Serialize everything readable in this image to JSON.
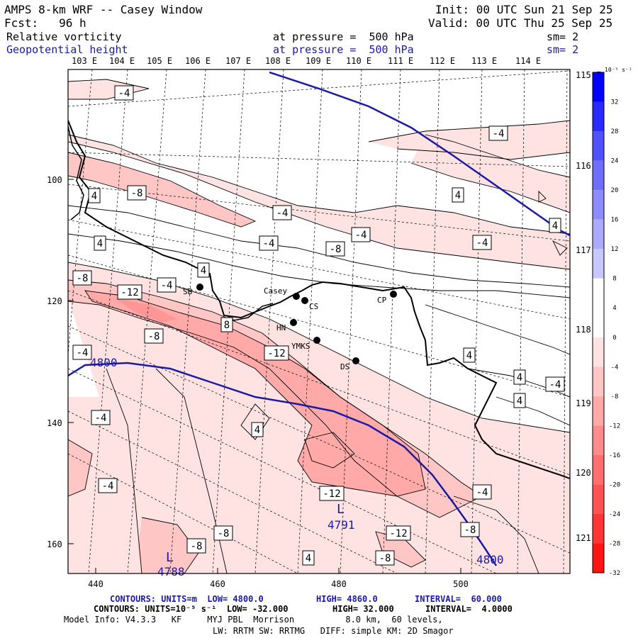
{
  "header": {
    "title": "AMPS 8-km WRF -- Casey Window",
    "forecast": "Fcst:   96 h",
    "init": "Init: 00 UTC Sun 21 Sep 25",
    "valid": "Valid: 00 UTC Thu 25 Sep 25"
  },
  "fields": [
    {
      "name": "Relative vorticity",
      "pressure": "at pressure =  500 hPa",
      "smooth": "sm= 2",
      "color": "#000000"
    },
    {
      "name": "Geopotential height",
      "pressure": "at pressure =  500 hPa",
      "smooth": "sm= 2",
      "color": "#1a1aa6"
    }
  ],
  "lon_labels": [
    "103 E",
    "104 E",
    "105 E",
    "106 E",
    "107 E",
    "108 E",
    "109 E",
    "110 E",
    "111 E",
    "112 E",
    "113 E",
    "114 E"
  ],
  "lat_labels": [
    "115 E",
    "116 E",
    "117 E",
    "118 E",
    "119 E",
    "120 E",
    "121 E"
  ],
  "x_ticks": [
    "440",
    "460",
    "480",
    "500"
  ],
  "y_ticks": [
    "100",
    "120",
    "140",
    "160"
  ],
  "stations": [
    {
      "id": "SB",
      "label": "SB"
    },
    {
      "id": "Casey",
      "label": "Casey"
    },
    {
      "id": "CS",
      "label": "CS"
    },
    {
      "id": "HN",
      "label": "HN"
    },
    {
      "id": "YMKS",
      "label": "YMKS"
    },
    {
      "id": "DS",
      "label": "DS"
    },
    {
      "id": "CP",
      "label": "CP"
    }
  ],
  "contour_labels": {
    "vort": [
      "-4",
      "-4",
      "-4",
      "-8",
      "4",
      "-4",
      "-4",
      "4",
      "4",
      "-8",
      "-4",
      "-4",
      "4",
      "4",
      "-8",
      "-12",
      "-4",
      "8",
      "-8",
      "-12",
      "-4",
      "4",
      "4",
      "-4",
      "4",
      "-4",
      "-4",
      "-12",
      "4",
      "-12",
      "-4",
      "-8",
      "-8",
      "4",
      "-8",
      "-8"
    ],
    "height": [
      "4800",
      "4800",
      "4791",
      "4788"
    ],
    "lows": [
      "L",
      "L"
    ]
  },
  "colorbar": {
    "unit": "10⁻⁵ s⁻¹",
    "labels": [
      "32",
      "28",
      "24",
      "20",
      "16",
      "12",
      "8",
      "4",
      "0",
      "-4",
      "-8",
      "-12",
      "-16",
      "-20",
      "-24",
      "-28",
      "-32"
    ],
    "colors": [
      "#0000ff",
      "#2a2aff",
      "#5050ff",
      "#6e6eff",
      "#8c8cff",
      "#aaaaff",
      "#c8c8ff",
      "#ffffff",
      "#ffffff",
      "#ffe3e3",
      "#ffc6c6",
      "#ffa9a9",
      "#ff8c8c",
      "#ff6f6f",
      "#ff5252",
      "#ff3535",
      "#ff1414"
    ]
  },
  "footer": {
    "line1_contours": "CONTOURS: UNITS=m  LOW= 4800.0",
    "line1_high": "HIGH= 4860.0",
    "line1_interval": "INTERVAL=  60.000",
    "line2_contours": "CONTOURS: UNITS=10⁻⁵ s⁻¹  LOW= -32.000",
    "line2_high": "HIGH= 32.000",
    "line2_interval": "INTERVAL=  4.0000",
    "line3": "Model Info: V4.3.3   KF     MYJ PBL  Morrison          8.0 km,  60 levels,",
    "line4": "LW: RRTM SW: RRTMG   DIFF: simple KM: 2D Smagor"
  }
}
